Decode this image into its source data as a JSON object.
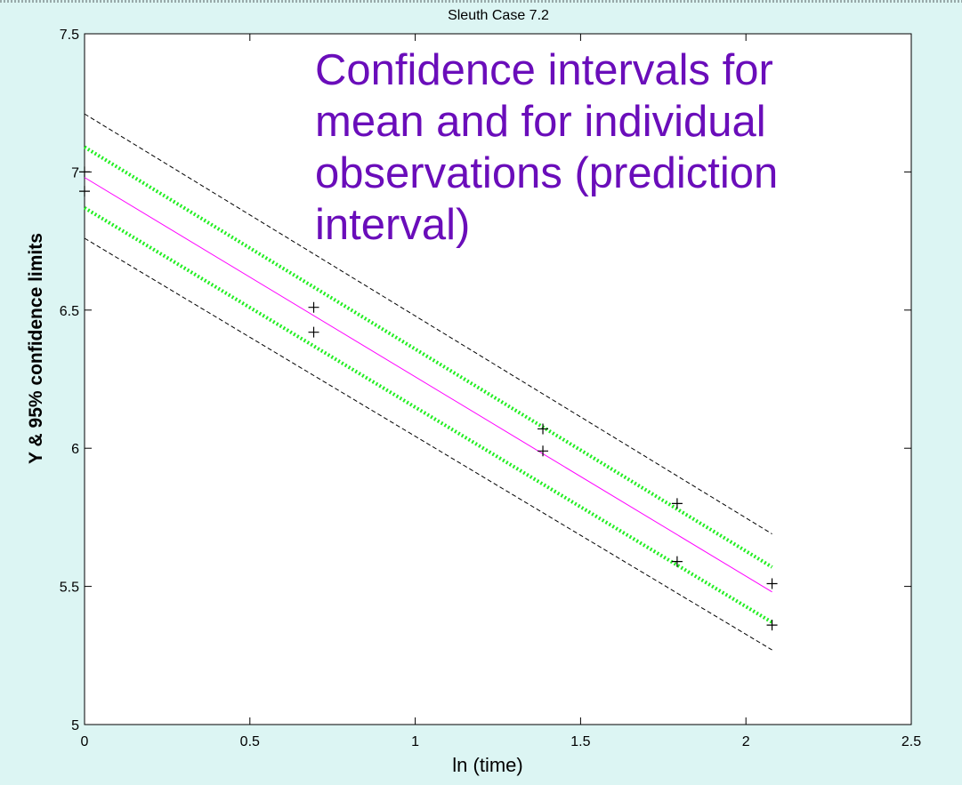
{
  "chart_data": {
    "type": "line",
    "title": "Sleuth Case 7.2",
    "xlabel": "ln (time)",
    "ylabel": "Y & 95% confidence limits",
    "xlim": [
      0,
      2.5
    ],
    "ylim": [
      5,
      7.5
    ],
    "xticks": [
      0,
      0.5,
      1,
      1.5,
      2,
      2.5
    ],
    "xtick_labels": [
      "0",
      "0.5",
      "1",
      "1.5",
      "2",
      "2.5"
    ],
    "yticks": [
      5,
      5.5,
      6,
      6.5,
      7,
      7.5
    ],
    "ytick_labels": [
      "5",
      "5.5",
      "6",
      "6.5",
      "7",
      "7.5"
    ],
    "grid": false,
    "annotation": "Confidence intervals for\nmean and for individual\nobservations (prediction\ninterval)",
    "colors": {
      "fit": "#ff00ff",
      "mean_ci": "#22ee22",
      "prediction": "#000000",
      "points": "#000000",
      "annotation": "#6a0dba",
      "background": "#dcf5f3"
    },
    "series": [
      {
        "style": "solid",
        "color": "#ff00ff",
        "x": [
          0,
          2.079
        ],
        "y": [
          6.98,
          5.48
        ]
      },
      {
        "style": "dotted",
        "color": "#22ee22",
        "x": [
          0,
          2.079
        ],
        "y": [
          7.09,
          5.57
        ]
      },
      {
        "style": "dotted",
        "color": "#22ee22",
        "x": [
          0,
          2.079
        ],
        "y": [
          6.87,
          5.37
        ]
      },
      {
        "style": "dashed",
        "color": "#000000",
        "x": [
          0,
          2.079
        ],
        "y": [
          7.21,
          5.69
        ]
      },
      {
        "style": "dashed",
        "color": "#000000",
        "x": [
          0,
          2.079
        ],
        "y": [
          6.76,
          5.27
        ]
      },
      {
        "style": "markers",
        "marker": "+",
        "color": "#000000",
        "x": [
          0,
          0,
          0.693,
          0.693,
          1.386,
          1.386,
          1.792,
          1.792,
          2.079,
          2.079
        ],
        "y": [
          7.0,
          6.93,
          6.51,
          6.42,
          6.07,
          5.99,
          5.8,
          5.59,
          5.51,
          5.36
        ]
      }
    ]
  }
}
